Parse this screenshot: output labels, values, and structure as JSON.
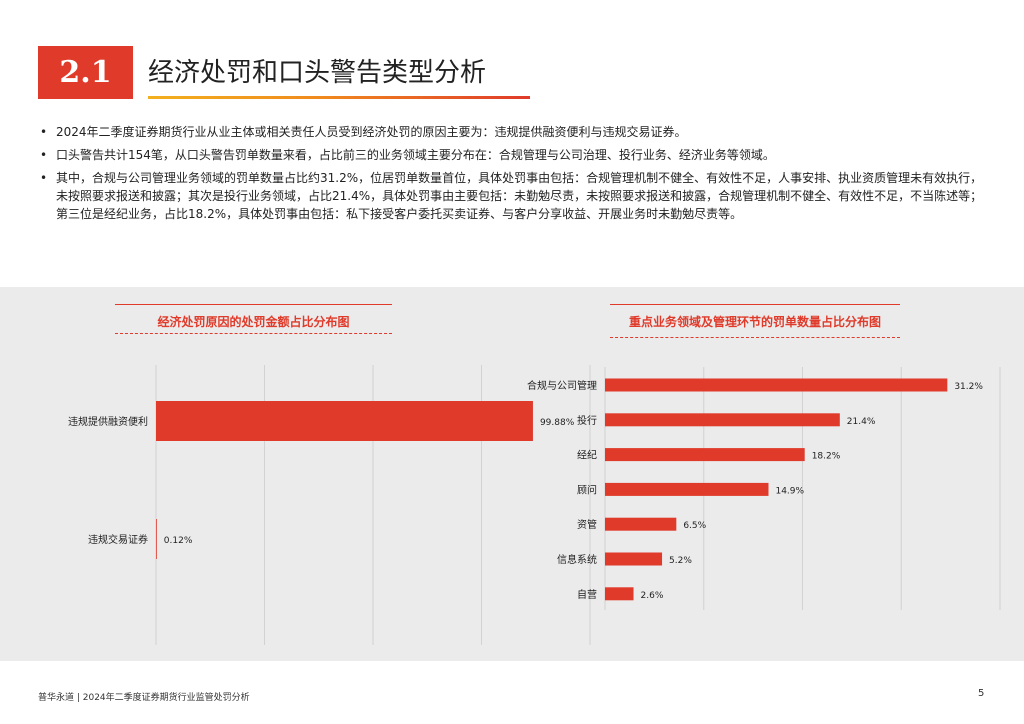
{
  "header": {
    "section_number": "2.1",
    "title": "经济处罚和口头警告类型分析"
  },
  "bullets": [
    "2024年二季度证券期货行业从业主体或相关责任人员受到经济处罚的原因主要为：违规提供融资便利与违规交易证券。",
    "口头警告共计154笔，从口头警告罚单数量来看，占比前三的业务领域主要分布在：合规管理与公司治理、投行业务、经济业务等领域。",
    "其中，合规与公司管理业务领域的罚单数量占比约31.2%，位居罚单数量首位，具体处罚事由包括：合规管理机制不健全、有效性不足，人事安排、执业资质管理未有效执行，未按照要求报送和披露；其次是投行业务领域，占比21.4%，具体处罚事由主要包括：未勤勉尽责，未按照要求报送和披露，合规管理机制不健全、有效性不足，不当陈述等；第三位是经纪业务，占比18.2%，具体处罚事由包括：私下接受客户委托买卖证券、与客户分享收益、开展业务时未勤勉尽责等。"
  ],
  "chart_data": [
    {
      "type": "bar",
      "orientation": "horizontal",
      "title": "经济处罚原因的处罚金额占比分布图",
      "categories": [
        "违规提供融资便利",
        "违规交易证券"
      ],
      "values": [
        99.88,
        0.12
      ],
      "labels": [
        "99.88%",
        "0.12%"
      ],
      "unit": "%",
      "xlim": [
        0,
        115
      ],
      "grid": true,
      "color": "#e03a2a"
    },
    {
      "type": "bar",
      "orientation": "horizontal",
      "title": "重点业务领域及管理环节的罚单数量占比分布图",
      "categories": [
        "合规与公司管理",
        "投行",
        "经纪",
        "顾问",
        "资管",
        "信息系统",
        "自营"
      ],
      "values": [
        31.2,
        21.4,
        18.2,
        14.9,
        6.5,
        5.2,
        2.6
      ],
      "labels": [
        "31.2%",
        "21.4%",
        "18.2%",
        "14.9%",
        "6.5%",
        "5.2%",
        "2.6%"
      ],
      "unit": "%",
      "xlim": [
        0,
        36
      ],
      "grid": true,
      "color": "#e03a2a"
    }
  ],
  "footer": {
    "left": "普华永道 | 2024年二季度证券期货行业监管处罚分析",
    "page_number": "5"
  }
}
